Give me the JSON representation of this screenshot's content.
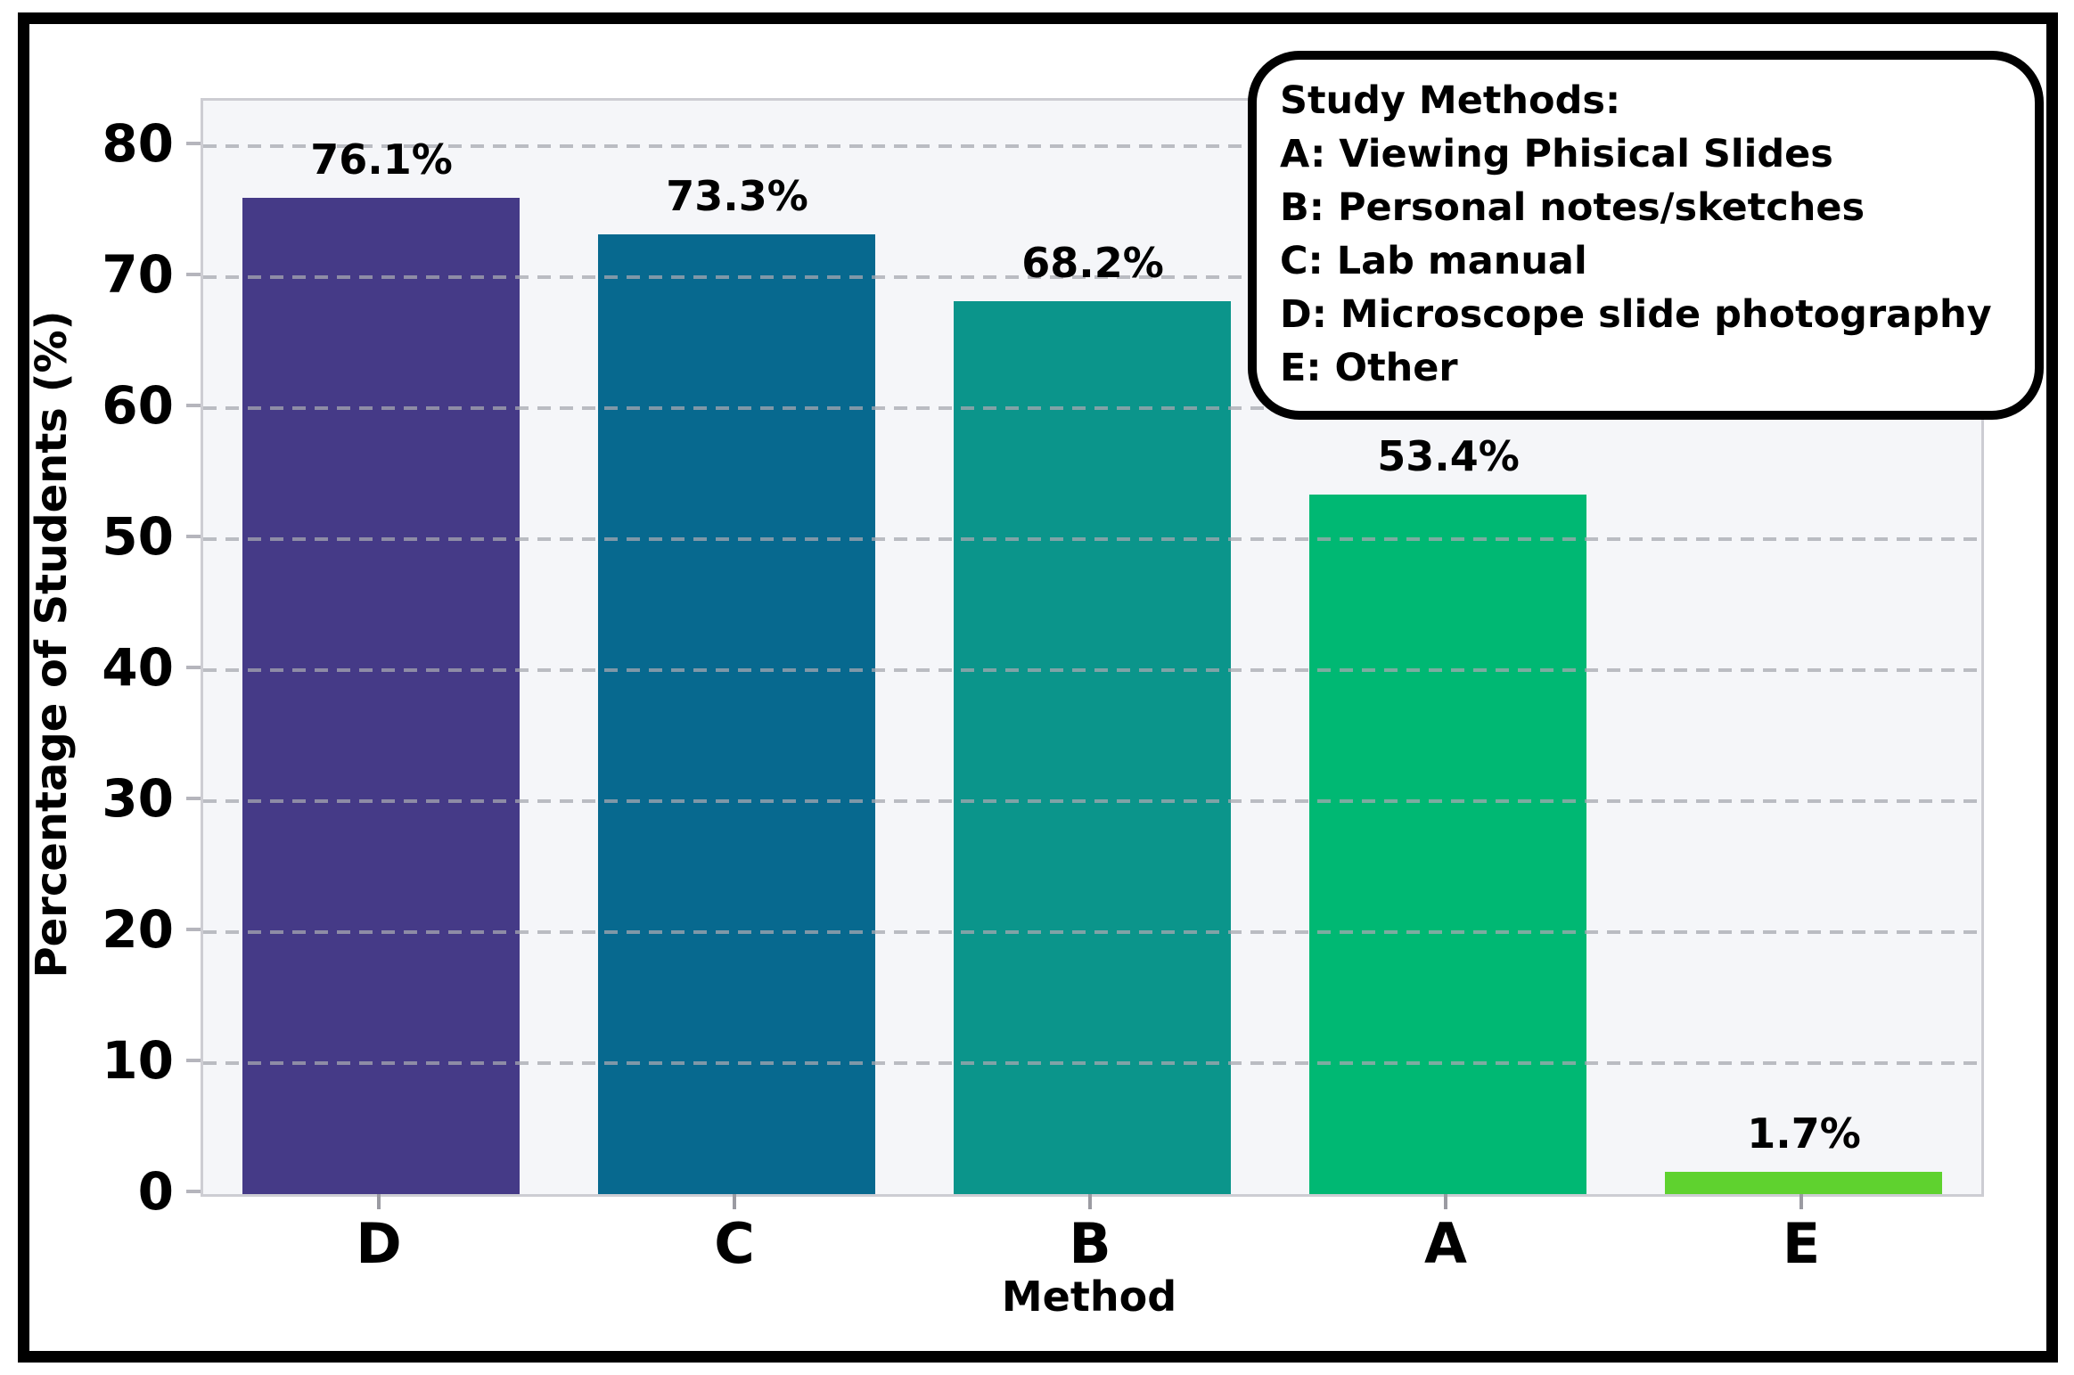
{
  "figure": {
    "background": "#ffffff",
    "frame_border_color": "#000000",
    "plot_background": "#f5f6f9",
    "spine_color": "#cdcdd3",
    "gridline_color": "#a7a8b0"
  },
  "chart_data": {
    "type": "bar",
    "title": "",
    "xlabel": "Method",
    "ylabel": "Percentage of Students (%)",
    "categories": [
      "D",
      "C",
      "B",
      "A",
      "E"
    ],
    "values": [
      76.1,
      73.3,
      68.2,
      53.4,
      1.7
    ],
    "value_labels": [
      "76.1%",
      "73.3%",
      "68.2%",
      "53.4%",
      "1.7%"
    ],
    "bar_colors": [
      "#453a87",
      "#07698f",
      "#0b958b",
      "#00b873",
      "#5fd22f"
    ],
    "ylim": [
      0,
      83.5
    ],
    "yticks": [
      0,
      10,
      20,
      30,
      40,
      50,
      60,
      70,
      80
    ],
    "grid": "horizontal-dashed-over-bars",
    "legend_position": "top-right"
  },
  "legend": {
    "title": "Study Methods:",
    "items": [
      "A: Viewing Phisical Slides",
      "B: Personal notes/sketches",
      "C: Lab manual",
      "D: Microscope slide photography",
      "E: Other"
    ]
  }
}
